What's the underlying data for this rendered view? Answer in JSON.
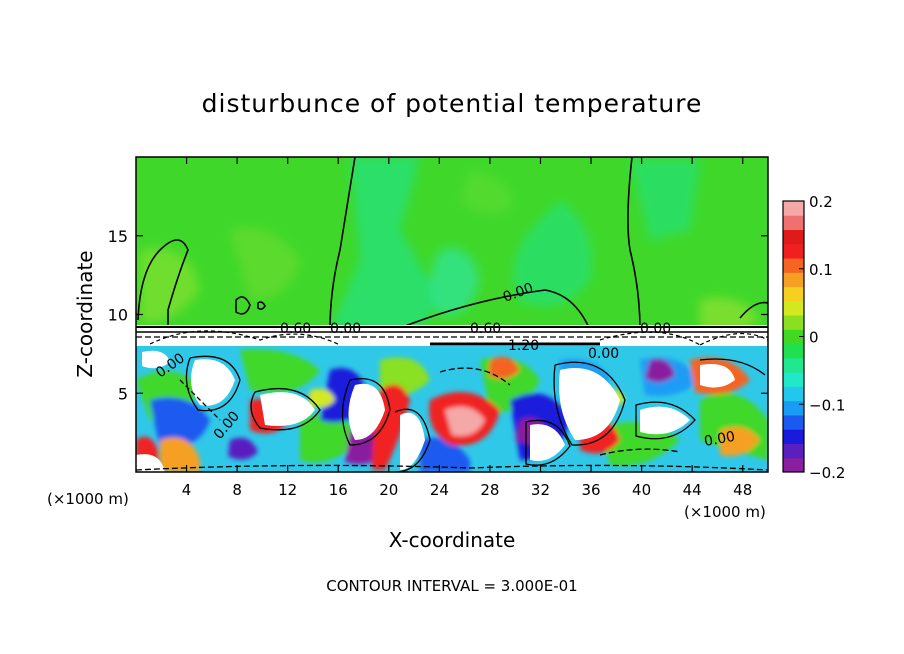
{
  "chart_data": {
    "type": "heatmap",
    "title": "disturbunce of potential temperature",
    "xlabel": "X-coordinate",
    "ylabel": "Z-coordinate",
    "x_unit_label_left": "(×1000 m)",
    "x_unit_label_right": "(×1000 m)",
    "xlim": [
      0,
      50
    ],
    "ylim": [
      0,
      20
    ],
    "x_ticks": [
      4,
      8,
      12,
      16,
      20,
      24,
      28,
      32,
      36,
      40,
      44,
      48
    ],
    "y_ticks": [
      5,
      10,
      15
    ],
    "grid": false,
    "footer": "CONTOUR INTERVAL = 3.000E-01",
    "colorbar": {
      "min": -0.2,
      "max": 0.2,
      "ticks": [
        -0.2,
        -0.1,
        0,
        0.1,
        0.2
      ],
      "tick_labels": [
        "-0.2",
        "-0.1",
        "0",
        "0.1",
        "0.2"
      ],
      "colors": [
        "#8a1fa0",
        "#5a1fc0",
        "#1a1adc",
        "#1a5af0",
        "#1a9cf5",
        "#20c8f0",
        "#20e8c8",
        "#20e890",
        "#20e050",
        "#40d820",
        "#8ae020",
        "#d4e820",
        "#f5d020",
        "#f5a020",
        "#f56420",
        "#f02020",
        "#e01a1a",
        "#f07070",
        "#f5a8a8"
      ]
    },
    "contour_labels": [
      "0.00",
      "0.00",
      "0.00",
      "0.60",
      "0.60",
      "1.20",
      "0.00",
      "0.00",
      "0.00",
      "0.00"
    ]
  }
}
